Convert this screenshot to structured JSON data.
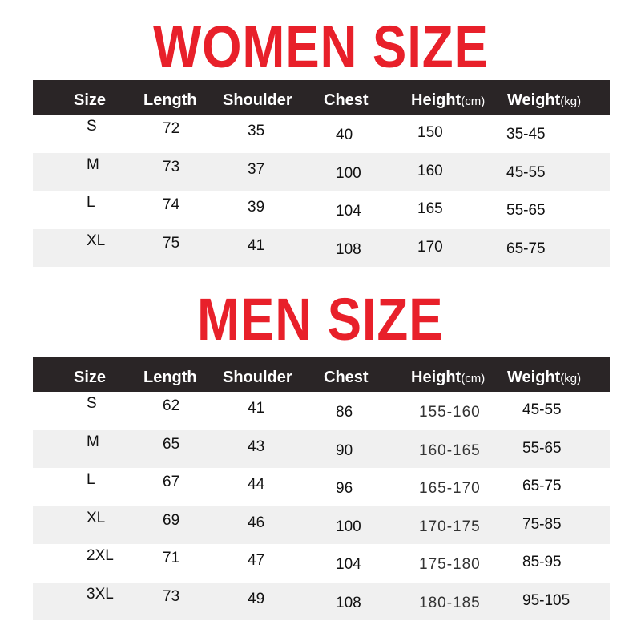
{
  "women": {
    "title": "WOMEN SIZE",
    "headers": {
      "size": "Size",
      "length": "Length",
      "shoulder": "Shoulder",
      "chest": "Chest",
      "height": "Height",
      "height_unit": "(cm)",
      "weight": "Weight",
      "weight_unit": "(kg)"
    },
    "rows": [
      {
        "size": "S",
        "length": "72",
        "shoulder": "35",
        "chest": "40",
        "height": "150",
        "weight": "35-45"
      },
      {
        "size": "M",
        "length": "73",
        "shoulder": "37",
        "chest": "100",
        "height": "160",
        "weight": "45-55"
      },
      {
        "size": "L",
        "length": "74",
        "shoulder": "39",
        "chest": "104",
        "height": "165",
        "weight": "55-65"
      },
      {
        "size": "XL",
        "length": "75",
        "shoulder": "41",
        "chest": "108",
        "height": "170",
        "weight": "65-75"
      }
    ]
  },
  "men": {
    "title": "MEN SIZE",
    "headers": {
      "size": "Size",
      "length": "Length",
      "shoulder": "Shoulder",
      "chest": "Chest",
      "height": "Height",
      "height_unit": "(cm)",
      "weight": "Weight",
      "weight_unit": "(kg)"
    },
    "rows": [
      {
        "size": "S",
        "length": "62",
        "shoulder": "41",
        "chest": "86",
        "height": "155-160",
        "weight": "45-55"
      },
      {
        "size": "M",
        "length": "65",
        "shoulder": "43",
        "chest": "90",
        "height": "160-165",
        "weight": "55-65"
      },
      {
        "size": "L",
        "length": "67",
        "shoulder": "44",
        "chest": "96",
        "height": "165-170",
        "weight": "65-75"
      },
      {
        "size": "XL",
        "length": "69",
        "shoulder": "46",
        "chest": "100",
        "height": "170-175",
        "weight": "75-85"
      },
      {
        "size": "2XL",
        "length": "71",
        "shoulder": "47",
        "chest": "104",
        "height": "175-180",
        "weight": "85-95"
      },
      {
        "size": "3XL",
        "length": "73",
        "shoulder": "49",
        "chest": "108",
        "height": "180-185",
        "weight": "95-105"
      }
    ]
  },
  "colors": {
    "title": "#e8202a",
    "header_bg": "#2a2526",
    "alt_row": "#f0f0f0"
  }
}
